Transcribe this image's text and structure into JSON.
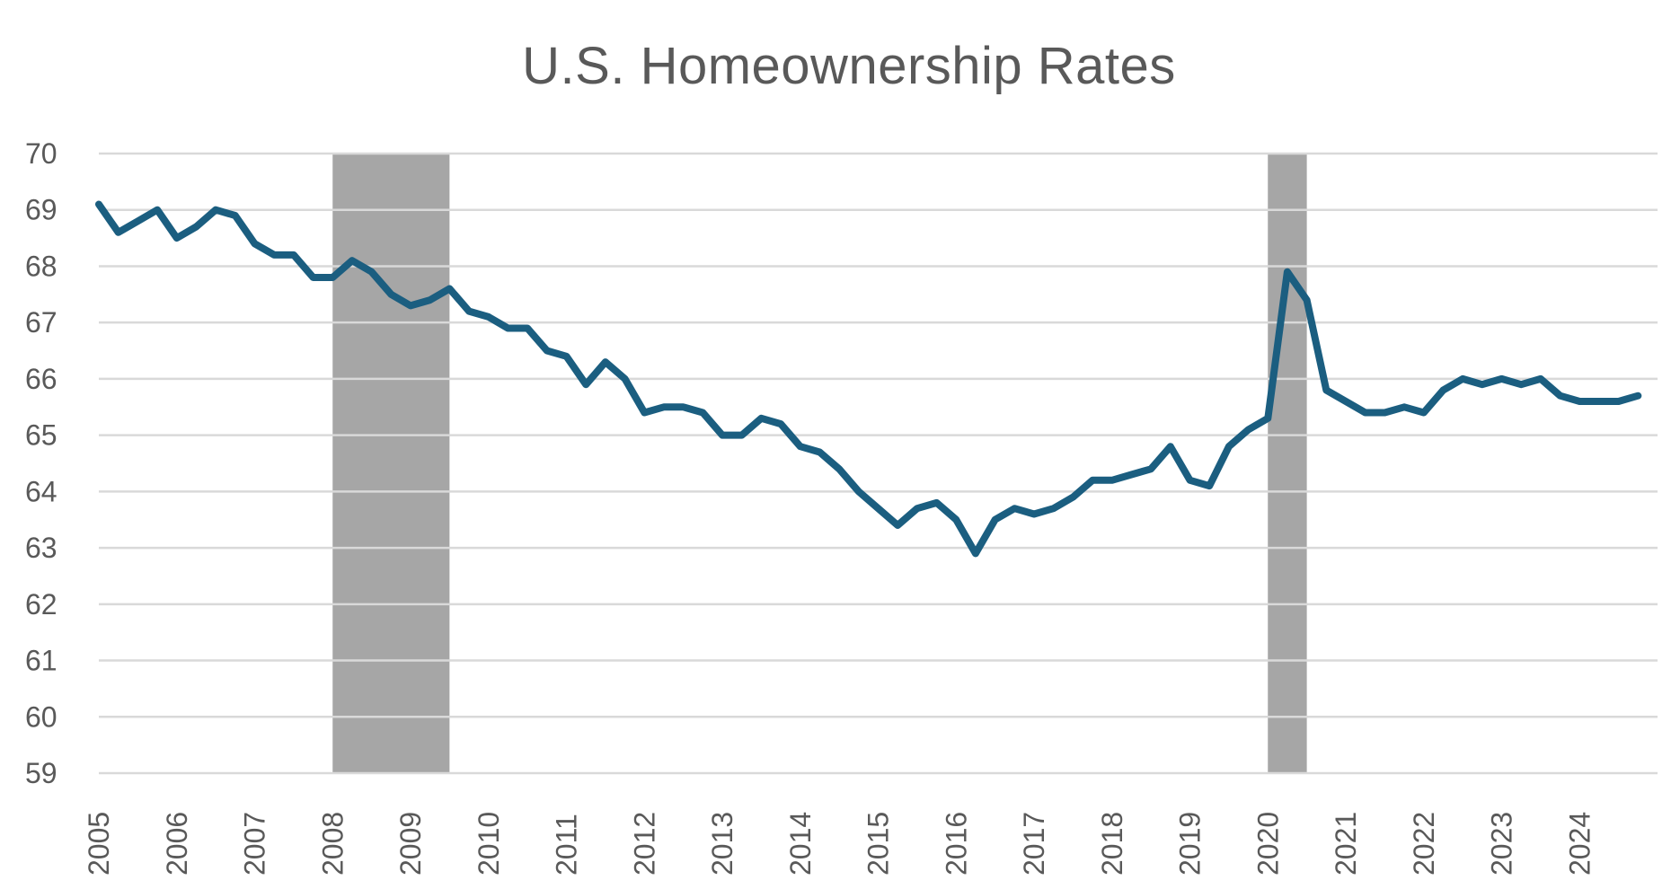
{
  "chart_data": {
    "type": "line",
    "title": "U.S. Homeownership Rates",
    "xlabel": "",
    "ylabel": "",
    "ylim": [
      59,
      70
    ],
    "xlim": [
      2005,
      2025
    ],
    "yticks": [
      "59",
      "60",
      "61",
      "62",
      "63",
      "64",
      "65",
      "66",
      "67",
      "68",
      "69",
      "70"
    ],
    "xticks": [
      "2005",
      "2006",
      "2007",
      "2008",
      "2009",
      "2010",
      "2011",
      "2012",
      "2013",
      "2014",
      "2015",
      "2016",
      "2017",
      "2018",
      "2019",
      "2020",
      "2021",
      "2022",
      "2023",
      "2024"
    ],
    "grid": true,
    "legend": "none",
    "colors": {
      "line": "#1b5e80",
      "shade": "#a6a6a6",
      "grid": "#d9d9d9",
      "text": "#595959"
    },
    "shaded_periods": [
      {
        "start": 2008.0,
        "end": 2009.5
      },
      {
        "start": 2020.0,
        "end": 2020.5
      }
    ],
    "series": [
      {
        "x": [
          2005.0,
          2005.25,
          2005.5,
          2005.75,
          2006.0,
          2006.25,
          2006.5,
          2006.75,
          2007.0,
          2007.25,
          2007.5,
          2007.75,
          2008.0,
          2008.25,
          2008.5,
          2008.75,
          2009.0,
          2009.25,
          2009.5,
          2009.75,
          2010.0,
          2010.25,
          2010.5,
          2010.75,
          2011.0,
          2011.25,
          2011.5,
          2011.75,
          2012.0,
          2012.25,
          2012.5,
          2012.75,
          2013.0,
          2013.25,
          2013.5,
          2013.75,
          2014.0,
          2014.25,
          2014.5,
          2014.75,
          2015.0,
          2015.25,
          2015.5,
          2015.75,
          2016.0,
          2016.25,
          2016.5,
          2016.75,
          2017.0,
          2017.25,
          2017.5,
          2017.75,
          2018.0,
          2018.25,
          2018.5,
          2018.75,
          2019.0,
          2019.25,
          2019.5,
          2019.75,
          2020.0,
          2020.25,
          2020.5,
          2020.75,
          2021.0,
          2021.25,
          2021.5,
          2021.75,
          2022.0,
          2022.25,
          2022.5,
          2022.75,
          2023.0,
          2023.25,
          2023.5,
          2023.75,
          2024.0,
          2024.25,
          2024.5,
          2024.75
        ],
        "values": [
          69.1,
          68.6,
          68.8,
          69.0,
          68.5,
          68.7,
          69.0,
          68.9,
          68.4,
          68.2,
          68.2,
          67.8,
          67.8,
          68.1,
          67.9,
          67.5,
          67.3,
          67.4,
          67.6,
          67.2,
          67.1,
          66.9,
          66.9,
          66.5,
          66.4,
          65.9,
          66.3,
          66.0,
          65.4,
          65.5,
          65.5,
          65.4,
          65.0,
          65.0,
          65.3,
          65.2,
          64.8,
          64.7,
          64.4,
          64.0,
          63.7,
          63.4,
          63.7,
          63.8,
          63.5,
          62.9,
          63.5,
          63.7,
          63.6,
          63.7,
          63.9,
          64.2,
          64.2,
          64.3,
          64.4,
          64.8,
          64.2,
          64.1,
          64.8,
          65.1,
          65.3,
          67.9,
          67.4,
          65.8,
          65.6,
          65.4,
          65.4,
          65.5,
          65.4,
          65.8,
          66.0,
          65.9,
          66.0,
          65.9,
          66.0,
          65.7,
          65.6,
          65.6,
          65.6,
          65.7
        ]
      }
    ]
  }
}
